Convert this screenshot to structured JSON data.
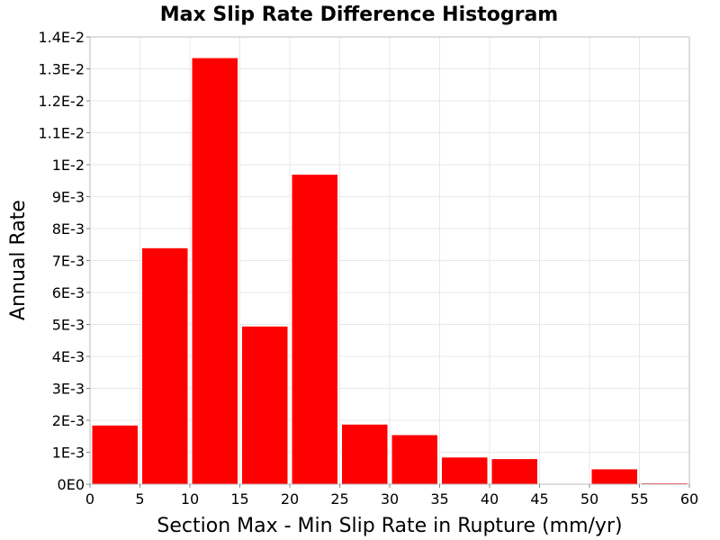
{
  "chart_data": {
    "type": "bar",
    "title": "Max Slip Rate Difference Histogram",
    "xlabel": "Section Max - Min Slip Rate in Rupture (mm/yr)",
    "ylabel": "Annual Rate",
    "xlim": [
      0,
      60
    ],
    "ylim": [
      0,
      0.014
    ],
    "bin_width": 5,
    "bar_color": "#ff0000",
    "grid": true,
    "x_ticks": [
      0,
      5,
      10,
      15,
      20,
      25,
      30,
      35,
      40,
      45,
      50,
      55,
      60
    ],
    "x_tick_labels": [
      "0",
      "5",
      "10",
      "15",
      "20",
      "25",
      "30",
      "35",
      "40",
      "45",
      "50",
      "55",
      "60"
    ],
    "y_ticks": [
      0,
      0.001,
      0.002,
      0.003,
      0.004,
      0.005,
      0.006,
      0.007,
      0.008,
      0.009,
      0.01,
      0.011,
      0.012,
      0.013,
      0.014
    ],
    "y_tick_labels": [
      "0E0",
      "1E-3",
      "2E-3",
      "3E-3",
      "4E-3",
      "5E-3",
      "6E-3",
      "7E-3",
      "8E-3",
      "9E-3",
      "1E-2",
      "1.1E-2",
      "1.2E-2",
      "1.3E-2",
      "1.4E-2"
    ],
    "bins": [
      {
        "x": 2.5,
        "value": 0.00185
      },
      {
        "x": 7.5,
        "value": 0.0074
      },
      {
        "x": 12.5,
        "value": 0.01335
      },
      {
        "x": 17.5,
        "value": 0.00495
      },
      {
        "x": 22.5,
        "value": 0.0097
      },
      {
        "x": 27.5,
        "value": 0.00188
      },
      {
        "x": 32.5,
        "value": 0.00155
      },
      {
        "x": 37.5,
        "value": 0.00085
      },
      {
        "x": 42.5,
        "value": 0.0008
      },
      {
        "x": 47.5,
        "value": 0.0
      },
      {
        "x": 52.5,
        "value": 0.00048
      },
      {
        "x": 57.5,
        "value": 4e-05
      }
    ]
  }
}
